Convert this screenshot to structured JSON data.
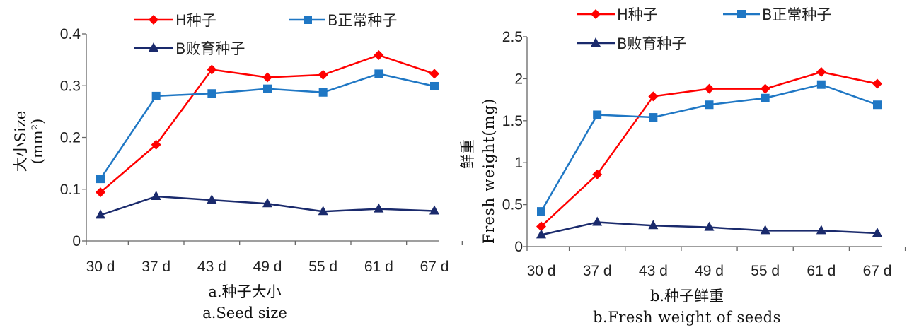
{
  "chart_data": [
    {
      "type": "line",
      "categories": [
        "30 d",
        "37 d",
        "43 d",
        "49 d",
        "55 d",
        "61 d",
        "67 d"
      ],
      "ylim": [
        0,
        0.4
      ],
      "yticks": [
        "0",
        "0.1",
        "0.2",
        "0.3",
        "0.4"
      ],
      "ylabel_cn": "大小Size",
      "ylabel_unit": "(mm²)",
      "caption_cn": "a.种子大小",
      "caption_en": "a.Seed size",
      "series": [
        {
          "name": "H种子",
          "color": "#ff0000",
          "marker": "diamond",
          "values": [
            0.094,
            0.186,
            0.331,
            0.316,
            0.321,
            0.359,
            0.323
          ]
        },
        {
          "name": "B正常种子",
          "color": "#1f77c4",
          "marker": "square",
          "values": [
            0.12,
            0.28,
            0.285,
            0.294,
            0.287,
            0.323,
            0.299
          ]
        },
        {
          "name": "B败育种子",
          "color": "#1a2a6c",
          "marker": "triangle",
          "values": [
            0.05,
            0.086,
            0.079,
            0.072,
            0.057,
            0.062,
            0.058
          ]
        }
      ]
    },
    {
      "type": "line",
      "categories": [
        "30 d",
        "37 d",
        "43 d",
        "49 d",
        "55 d",
        "61 d",
        "67 d"
      ],
      "ylim": [
        0,
        2.5
      ],
      "yticks": [
        "0",
        "0.5",
        "1",
        "1.5",
        "2",
        "2.5"
      ],
      "ylabel_cn": "鲜重",
      "ylabel_en": "Fresh weight(mg)",
      "caption_cn": "b.种子鲜重",
      "caption_en": "b.Fresh weight of seeds",
      "series": [
        {
          "name": "H种子",
          "color": "#ff0000",
          "marker": "diamond",
          "values": [
            0.24,
            0.86,
            1.79,
            1.88,
            1.88,
            2.08,
            1.94
          ]
        },
        {
          "name": "B正常种子",
          "color": "#1f77c4",
          "marker": "square",
          "values": [
            0.42,
            1.57,
            1.54,
            1.69,
            1.77,
            1.93,
            1.69
          ]
        },
        {
          "name": "B败育种子",
          "color": "#1a2a6c",
          "marker": "triangle",
          "values": [
            0.14,
            0.29,
            0.25,
            0.23,
            0.19,
            0.19,
            0.16
          ]
        }
      ]
    }
  ]
}
